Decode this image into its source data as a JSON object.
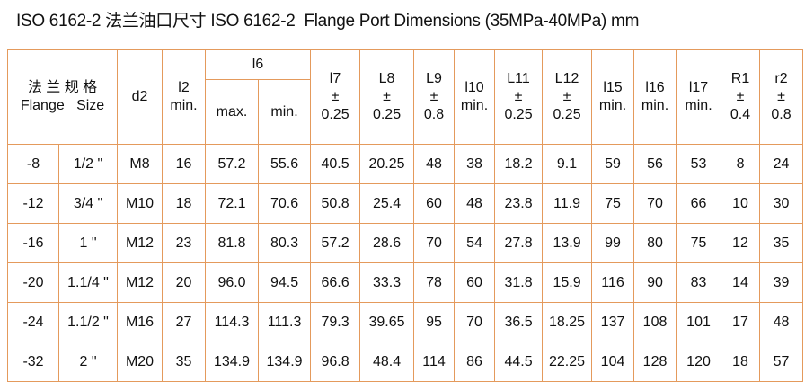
{
  "title": "ISO 6162-2 法兰油口尺寸 ISO 6162-2  Flange Port Dimensions (35MPa-40MPa) mm",
  "table": {
    "header": [
      [
        "法 兰 规 格",
        "Flange   Size"
      ],
      [
        "d2"
      ],
      [
        "l2",
        "min."
      ],
      [
        "l6"
      ],
      [
        "l7",
        "±",
        "0.25"
      ],
      [
        "L8",
        "±",
        "0.25"
      ],
      [
        "L9",
        "±",
        "0.8"
      ],
      [
        "l10",
        "min."
      ],
      [
        "L11",
        "±",
        "0.25"
      ],
      [
        "L12",
        "±",
        "0.25"
      ],
      [
        "l15",
        "min."
      ],
      [
        "l16",
        "min."
      ],
      [
        "l17",
        "min."
      ],
      [
        "R1",
        "±",
        "0.4"
      ],
      [
        "r2",
        "±",
        "0.8"
      ]
    ],
    "subheader": [
      "max.",
      "min."
    ],
    "rows": [
      [
        "-8",
        "1/2 \"",
        "M8",
        "16",
        "57.2",
        "55.6",
        "40.5",
        "20.25",
        "48",
        "38",
        "18.2",
        "9.1",
        "59",
        "56",
        "53",
        "8",
        "24"
      ],
      [
        "-12",
        "3/4 \"",
        "M10",
        "18",
        "72.1",
        "70.6",
        "50.8",
        "25.4",
        "60",
        "48",
        "23.8",
        "11.9",
        "75",
        "70",
        "66",
        "10",
        "30"
      ],
      [
        "-16",
        "1 \"",
        "M12",
        "23",
        "81.8",
        "80.3",
        "57.2",
        "28.6",
        "70",
        "54",
        "27.8",
        "13.9",
        "99",
        "80",
        "75",
        "12",
        "35"
      ],
      [
        "-20",
        "1.1/4 \"",
        "M12",
        "20",
        "96.0",
        "94.5",
        "66.6",
        "33.3",
        "78",
        "60",
        "31.8",
        "15.9",
        "116",
        "90",
        "83",
        "14",
        "39"
      ],
      [
        "-24",
        "1.1/2 \"",
        "M16",
        "27",
        "114.3",
        "111.3",
        "79.3",
        "39.65",
        "95",
        "70",
        "36.5",
        "18.25",
        "137",
        "108",
        "101",
        "17",
        "48"
      ],
      [
        "-32",
        "2 \"",
        "M20",
        "35",
        "134.9",
        "134.9",
        "96.8",
        "48.4",
        "114",
        "86",
        "44.5",
        "22.25",
        "104",
        "128",
        "120",
        "18",
        "57"
      ]
    ]
  }
}
